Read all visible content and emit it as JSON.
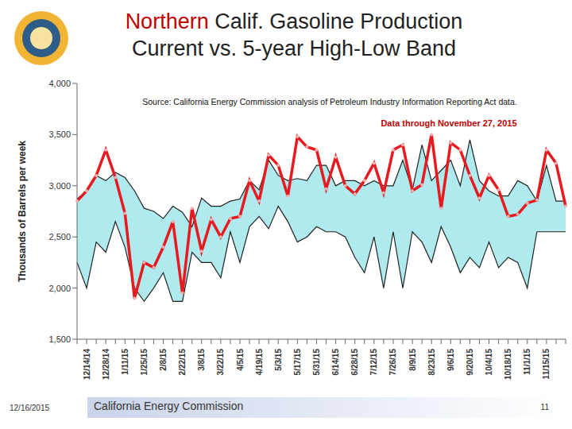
{
  "chart_data": {
    "type": "line",
    "title": "Northern Calif. Gasoline Production",
    "subtitle": "Current vs. 5-year High-Low Band",
    "annotations": [
      "Source: California Energy Commission analysis of Petroleum Industry Information Reporting Act data.",
      "Data through November 27, 2015"
    ],
    "y_label": "Thousands of Barrels per week",
    "categories": [
      null,
      "12/14/14",
      null,
      "12/28/14",
      null,
      "1/11/15",
      null,
      "1/25/15",
      null,
      "2/8/15",
      null,
      "2/22/15",
      null,
      "3/8/15",
      null,
      "3/22/15",
      null,
      "4/5/15",
      null,
      "4/19/15",
      null,
      "5/3/15",
      null,
      "5/17/15",
      null,
      "5/31/15",
      null,
      "6/14/15",
      null,
      "6/28/15",
      null,
      "7/12/15",
      null,
      "7/26/15",
      null,
      "8/9/15",
      null,
      "8/23/15",
      null,
      "9/6/15",
      null,
      "9/20/15",
      null,
      "10/4/15",
      null,
      "10/18/15",
      null,
      "11/1/15",
      null,
      "11/15/15",
      null,
      null
    ],
    "series": [
      {
        "type": "band",
        "color": "#aeeaee",
        "low": [
          2250,
          2000,
          2450,
          2350,
          2650,
          2400,
          2000,
          1870,
          2000,
          2150,
          1870,
          1870,
          2350,
          2250,
          2250,
          2100,
          2550,
          2250,
          2600,
          2700,
          2580,
          2800,
          2650,
          2450,
          2500,
          2600,
          2550,
          2550,
          2500,
          2300,
          2150,
          2500,
          2000,
          2550,
          2000,
          2550,
          2450,
          2250,
          2600,
          2400,
          2150,
          2300,
          2200,
          2450,
          2200,
          2300,
          2250,
          2000,
          2550,
          2550,
          2550,
          2550
        ],
        "high": [
          2870,
          2950,
          3100,
          3050,
          3130,
          3080,
          2950,
          2780,
          2750,
          2680,
          2800,
          2740,
          2600,
          2880,
          2800,
          2800,
          2850,
          2870,
          3050,
          2960,
          3250,
          3100,
          3050,
          3070,
          3050,
          3200,
          3200,
          3000,
          3050,
          3050,
          3000,
          3050,
          3000,
          3000,
          3250,
          2960,
          3400,
          3050,
          3150,
          3250,
          3000,
          3450,
          3050,
          2950,
          2900,
          2900,
          3050,
          3000,
          2850,
          3200,
          2850,
          2850
        ]
      },
      {
        "type": "line",
        "color": "#e8191f",
        "marker": "o",
        "values": [
          2850,
          2950,
          3100,
          3350,
          3080,
          2730,
          1900,
          2250,
          2200,
          2400,
          2650,
          1950,
          2780,
          2360,
          2670,
          2500,
          2680,
          2700,
          3050,
          2850,
          3300,
          3200,
          2900,
          3480,
          3380,
          3350,
          2970,
          3280,
          3000,
          2920,
          3050,
          3220,
          2930,
          3350,
          3400,
          2950,
          3010,
          3500,
          2780,
          3420,
          3350,
          3100,
          2880,
          3100,
          2960,
          2700,
          2720,
          2830,
          2860,
          3350,
          3220,
          2800
        ]
      }
    ],
    "ylim": [
      1500,
      4000
    ],
    "yticks": [
      {
        "value": 1500,
        "label": "1,500"
      },
      {
        "value": 2000,
        "label": "2,000"
      },
      {
        "value": 2500,
        "label": "2,500"
      },
      {
        "value": 3000,
        "label": "3,000"
      },
      {
        "value": 3500,
        "label": "3,500"
      },
      {
        "value": 4000,
        "label": "4,000"
      }
    ],
    "grid": false
  },
  "footer": {
    "date": "12/16/2015",
    "organization": "California Energy Commission",
    "page": "11"
  }
}
